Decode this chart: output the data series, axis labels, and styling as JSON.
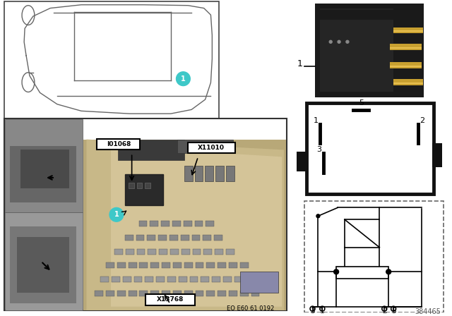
{
  "bg_color": "#ffffff",
  "teal_color": "#3EC8C8",
  "label_I01068": "I01068",
  "label_X11010": "X11010",
  "label_X13768": "X13768",
  "label_EO": "EO E60 61 0192",
  "label_ref": "384465"
}
